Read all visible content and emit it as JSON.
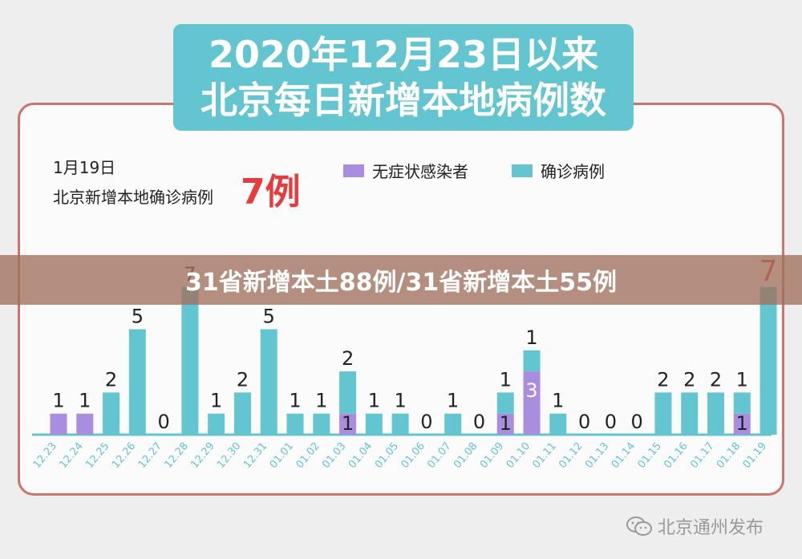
{
  "title": {
    "line1": "2020年12月23日以来",
    "line2": "北京每日新增本地病例数"
  },
  "summary": {
    "date": "1月19日",
    "label": "北京新增本地确诊病例",
    "value": "7例"
  },
  "overlay": {
    "headline": "31省新增本土88例/31省新增本土55例"
  },
  "watermark": {
    "text": "北京通州发布"
  },
  "colors": {
    "confirmed": "#63c5cf",
    "asymptomatic": "#a98ee0",
    "frame": "#c9756d",
    "highlight": "#e53d3d"
  },
  "chart_data": {
    "type": "bar",
    "stacked": true,
    "categories": [
      "12.23",
      "12.24",
      "12.25",
      "12.26",
      "12.27",
      "12.28",
      "12.29",
      "12.30",
      "12.31",
      "01.01",
      "01.02",
      "01.03",
      "01.04",
      "01.05",
      "01.06",
      "01.07",
      "01.08",
      "01.09",
      "01.10",
      "01.11",
      "01.12",
      "01.13",
      "01.14",
      "01.15",
      "01.16",
      "01.17",
      "01.18",
      "01.19"
    ],
    "series": [
      {
        "name": "无症状感染者",
        "values": [
          1,
          1,
          0,
          0,
          0,
          0,
          0,
          0,
          0,
          0,
          0,
          1,
          0,
          0,
          0,
          0,
          0,
          1,
          3,
          0,
          0,
          0,
          0,
          0,
          0,
          0,
          1,
          0
        ]
      },
      {
        "name": "确诊病例",
        "values": [
          0,
          0,
          2,
          5,
          0,
          7,
          1,
          2,
          5,
          1,
          1,
          2,
          1,
          1,
          0,
          1,
          0,
          1,
          1,
          1,
          0,
          0,
          0,
          2,
          2,
          2,
          1,
          7
        ]
      }
    ],
    "legend_position": "top",
    "grid": false
  }
}
